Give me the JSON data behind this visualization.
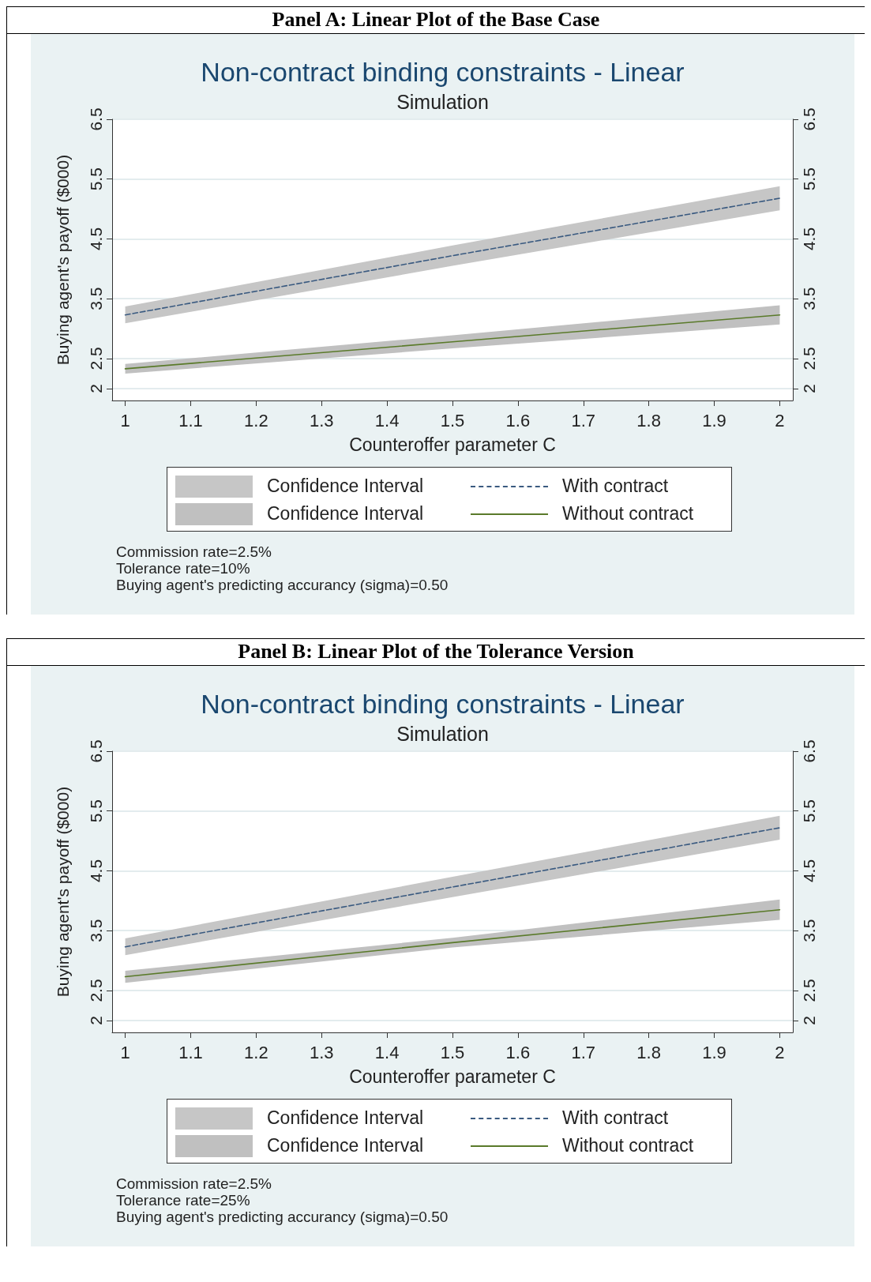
{
  "chart_data": [
    {
      "type": "line",
      "title": "Non-contract binding constraints - Linear",
      "subtitle": "Simulation",
      "xlabel": "Counteroffer parameter C",
      "ylabel": "Buying agent's payoff ($000)",
      "annotations": [
        "Panel A: Linear Plot of the Base Case",
        "Confidence Interval",
        "Confidence Interval",
        "Commission rate=2.5%",
        "Tolerance rate=10%",
        "Buying agent's predicting accurancy (sigma)=0.50"
      ],
      "xlim": [
        0.98,
        2.02
      ],
      "xticks": [
        1,
        1.1,
        1.2,
        1.3,
        1.4,
        1.5,
        1.6,
        1.7,
        1.8,
        1.9,
        2
      ],
      "ylim": [
        1.8,
        6.5
      ],
      "yticks": [
        2,
        2.5,
        3.5,
        4.5,
        5.5,
        6.5
      ],
      "y2lim": [
        1.8,
        6.5
      ],
      "y2ticks": [
        2,
        2.5,
        3.5,
        4.5,
        5.5,
        6.5
      ],
      "grid": "y",
      "legend": "bottom",
      "marker": "none",
      "series": [
        {
          "name": "With contract",
          "line_style": "dashed",
          "color": "#3a5a80",
          "x": [
            1,
            1.5,
            2
          ],
          "values": [
            3.23,
            4.22,
            5.18
          ],
          "lower": [
            3.09,
            4.05,
            4.98
          ],
          "upper": [
            3.37,
            4.39,
            5.38
          ]
        },
        {
          "name": "Without contract",
          "line_style": "solid",
          "color": "#5a7a2a",
          "x": [
            1,
            1.5,
            2
          ],
          "values": [
            2.33,
            2.78,
            3.23
          ],
          "lower": [
            2.25,
            2.67,
            3.07
          ],
          "upper": [
            2.41,
            2.89,
            3.39
          ]
        }
      ]
    },
    {
      "type": "line",
      "title": "Non-contract binding constraints - Linear",
      "subtitle": "Simulation",
      "xlabel": "Counteroffer parameter C",
      "ylabel": "Buying agent's payoff ($000)",
      "annotations": [
        "Panel B: Linear Plot of the Tolerance Version",
        "Confidence Interval",
        "Confidence Interval",
        "Commission rate=2.5%",
        "Tolerance rate=25%",
        "Buying agent's predicting accurancy (sigma)=0.50"
      ],
      "xlim": [
        0.98,
        2.02
      ],
      "xticks": [
        1,
        1.1,
        1.2,
        1.3,
        1.4,
        1.5,
        1.6,
        1.7,
        1.8,
        1.9,
        2
      ],
      "ylim": [
        1.8,
        6.5
      ],
      "yticks": [
        2,
        2.5,
        3.5,
        4.5,
        5.5,
        6.5
      ],
      "y2lim": [
        1.8,
        6.5
      ],
      "y2ticks": [
        2,
        2.5,
        3.5,
        4.5,
        5.5,
        6.5
      ],
      "grid": "y",
      "legend": "bottom",
      "marker": "none",
      "series": [
        {
          "name": "With contract",
          "line_style": "dashed",
          "color": "#3a5a80",
          "x": [
            1,
            1.5,
            2
          ],
          "values": [
            3.23,
            4.23,
            5.22
          ],
          "lower": [
            3.09,
            4.06,
            5.02
          ],
          "upper": [
            3.37,
            4.4,
            5.42
          ]
        },
        {
          "name": "Without contract",
          "line_style": "solid",
          "color": "#5a7a2a",
          "x": [
            1,
            1.5,
            2
          ],
          "values": [
            2.73,
            3.3,
            3.85
          ],
          "lower": [
            2.63,
            3.22,
            3.68
          ],
          "upper": [
            2.83,
            3.38,
            4.02
          ]
        }
      ]
    }
  ]
}
